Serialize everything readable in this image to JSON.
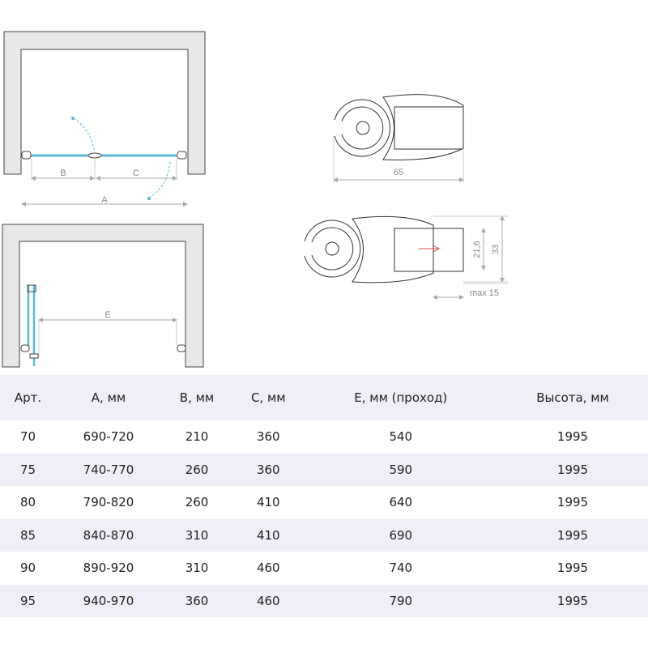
{
  "diagram": {
    "labels": {
      "a": "A",
      "b": "B",
      "c": "C",
      "e": "E"
    },
    "profile_dims": {
      "width": "65",
      "glass": "21,6",
      "height": "33",
      "adjust": "max 15"
    },
    "colors": {
      "glass": "#5ab8dc",
      "wall": "#e8e8e8",
      "arrow": "#d9534f",
      "dim": "#aaaaaa"
    }
  },
  "table": {
    "headers": [
      "Арт.",
      "A, мм",
      "B, мм",
      "C, мм",
      "E, мм (проход)",
      "Высота, мм"
    ],
    "rows": [
      [
        "70",
        "690-720",
        "210",
        "360",
        "540",
        "1995"
      ],
      [
        "75",
        "740-770",
        "260",
        "360",
        "590",
        "1995"
      ],
      [
        "80",
        "790-820",
        "260",
        "410",
        "640",
        "1995"
      ],
      [
        "85",
        "840-870",
        "310",
        "410",
        "690",
        "1995"
      ],
      [
        "90",
        "890-920",
        "310",
        "460",
        "740",
        "1995"
      ],
      [
        "95",
        "940-970",
        "360",
        "460",
        "790",
        "1995"
      ]
    ]
  }
}
